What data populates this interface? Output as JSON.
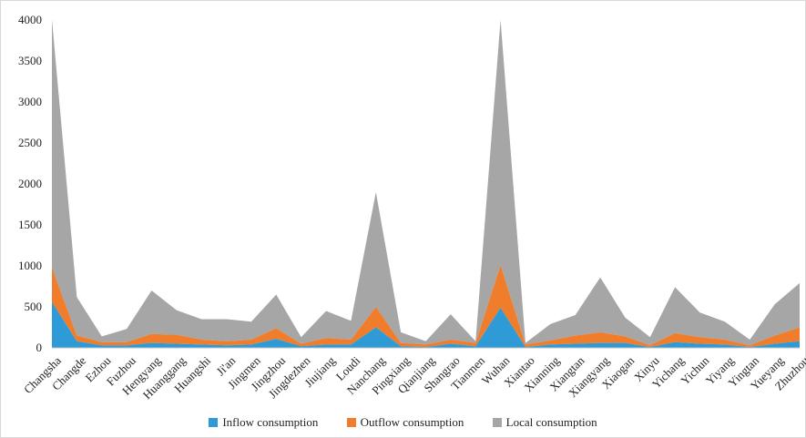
{
  "chart_data": {
    "type": "area",
    "stacked": true,
    "title": "",
    "xlabel": "",
    "ylabel": "",
    "ylim": [
      0,
      4000
    ],
    "yticks": [
      0,
      500,
      1000,
      1500,
      2000,
      2500,
      3000,
      3500,
      4000
    ],
    "grid": false,
    "legend": "bottom",
    "categories": [
      "Changsha",
      "Changde",
      "Ezhou",
      "Fuzhou",
      "Hengyang",
      "Huanggang",
      "Huangshi",
      "Ji'an",
      "Jingmen",
      "Jingzhou",
      "Jingdezhen",
      "Jiujiang",
      "Loudi",
      "Nanchang",
      "Pingxiang",
      "Qianjiang",
      "Shangrao",
      "Tianmen",
      "Wuhan",
      "Xiantao",
      "Xianning",
      "Xiangtan",
      "Xiangyang",
      "Xiaogan",
      "Xinyu",
      "Yichang",
      "Yichun",
      "Yiyang",
      "Yingtan",
      "Yueyang",
      "Zhuzhou"
    ],
    "series": [
      {
        "name": "Inflow consumption",
        "color": "#2e9ad6",
        "values": [
          560,
          80,
          30,
          30,
          60,
          50,
          40,
          30,
          40,
          110,
          20,
          40,
          40,
          250,
          20,
          10,
          50,
          20,
          490,
          10,
          40,
          50,
          60,
          60,
          10,
          70,
          50,
          40,
          10,
          50,
          80
        ]
      },
      {
        "name": "Outflow consumption",
        "color": "#f07d2b",
        "values": [
          420,
          70,
          40,
          40,
          110,
          110,
          60,
          50,
          60,
          130,
          30,
          80,
          60,
          250,
          40,
          30,
          50,
          40,
          520,
          30,
          50,
          100,
          130,
          80,
          20,
          110,
          80,
          60,
          20,
          100,
          170
        ]
      },
      {
        "name": "Local consumption",
        "color": "#a6a6a6",
        "values": [
          3030,
          470,
          70,
          160,
          530,
          300,
          250,
          270,
          220,
          410,
          80,
          330,
          230,
          1400,
          130,
          40,
          310,
          20,
          2990,
          20,
          200,
          250,
          670,
          230,
          100,
          560,
          300,
          220,
          70,
          380,
          540
        ]
      }
    ]
  }
}
